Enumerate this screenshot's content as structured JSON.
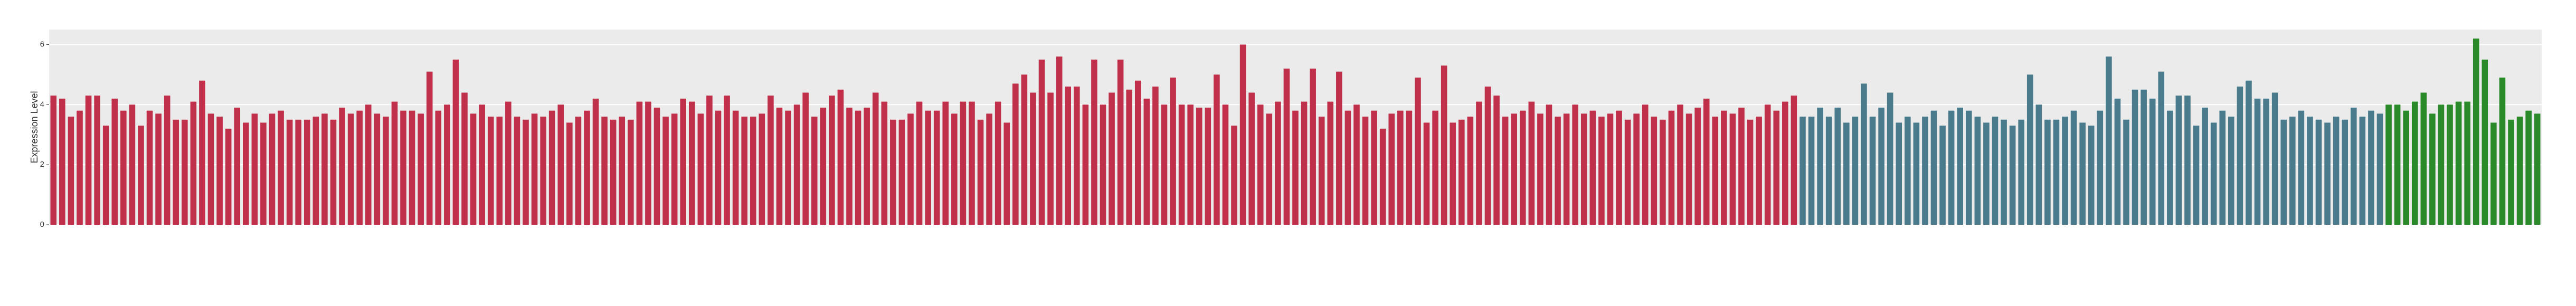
{
  "chart_data": {
    "type": "bar",
    "ylabel": "Expression Level",
    "ylim": [
      0,
      6.5
    ],
    "yticks": [
      0,
      2,
      4,
      6
    ],
    "grid": true,
    "series": [
      {
        "color": "#c0304a",
        "values": [
          4.3,
          4.2,
          3.6,
          3.8,
          4.3,
          4.3,
          3.3,
          4.2,
          3.8,
          4.0,
          3.3,
          3.8,
          3.7,
          4.3,
          3.5,
          3.5,
          4.1,
          4.8,
          3.7,
          3.6,
          3.2,
          3.9,
          3.4,
          3.7,
          3.4,
          3.7,
          3.8,
          3.5,
          3.5,
          3.5,
          3.6,
          3.7,
          3.5,
          3.9,
          3.7,
          3.8,
          4.0,
          3.7,
          3.6,
          4.1,
          3.8,
          3.8,
          3.7,
          5.1,
          3.8,
          4.0,
          5.5,
          4.4,
          3.7,
          4.0,
          3.6,
          3.6,
          4.1,
          3.6,
          3.5,
          3.7,
          3.6,
          3.8,
          4.0,
          3.4,
          3.6,
          3.8,
          4.2,
          3.6,
          3.5,
          3.6,
          3.5,
          4.1,
          4.1,
          3.9,
          3.6,
          3.7,
          4.2,
          4.1,
          3.7,
          4.3,
          3.8,
          4.3,
          3.8,
          3.6,
          3.6,
          3.7,
          4.3,
          3.9,
          3.8,
          4.0,
          4.4,
          3.6,
          3.9,
          4.3,
          4.5,
          3.9,
          3.8,
          3.9,
          4.4,
          4.1,
          3.5,
          3.5,
          3.7,
          4.1,
          3.8,
          3.8,
          4.1,
          3.7,
          4.1,
          4.1,
          3.5,
          3.7,
          4.1,
          3.4,
          4.7,
          5.0,
          4.4,
          5.5,
          4.4,
          5.6,
          4.6,
          4.6,
          4.0,
          5.5,
          4.0,
          4.4,
          5.5,
          4.5,
          4.8,
          4.2,
          4.6,
          4.0,
          4.9,
          4.0,
          4.0,
          3.9,
          3.9,
          5.0,
          4.0,
          3.3,
          6.0,
          4.4,
          4.0,
          3.7,
          4.1,
          5.2,
          3.8,
          4.1,
          5.2,
          3.6,
          4.1,
          5.1,
          3.8,
          4.0,
          3.6,
          3.8,
          3.2,
          3.7,
          3.8,
          3.8,
          4.9,
          3.4,
          3.8,
          5.3,
          3.4,
          3.5,
          3.6,
          4.1,
          4.6,
          4.3,
          3.6,
          3.7,
          3.8,
          4.1,
          3.7,
          4.0,
          3.6,
          3.7,
          4.0,
          3.7,
          3.8,
          3.6,
          3.7,
          3.8,
          3.5,
          3.7,
          4.0,
          3.6,
          3.5,
          3.8,
          4.0,
          3.7,
          3.9,
          4.2,
          3.6,
          3.8,
          3.7,
          3.9,
          3.5,
          3.6,
          4.0,
          3.8,
          4.1,
          4.3
        ]
      },
      {
        "color": "#4a7b8c",
        "values": [
          3.6,
          3.6,
          3.9,
          3.6,
          3.9,
          3.4,
          3.6,
          4.7,
          3.6,
          3.9,
          4.4,
          3.4,
          3.6,
          3.4,
          3.6,
          3.8,
          3.3,
          3.8,
          3.9,
          3.8,
          3.6,
          3.4,
          3.6,
          3.5,
          3.3,
          3.5,
          5.0,
          4.0,
          3.5,
          3.5,
          3.6,
          3.8,
          3.4,
          3.3,
          3.8,
          5.6,
          4.2,
          3.5,
          4.5,
          4.5,
          4.2,
          5.1,
          3.8,
          4.3,
          4.3,
          3.3,
          3.9,
          3.4,
          3.8,
          3.6,
          4.6,
          4.8,
          4.2,
          4.2,
          4.4,
          3.5,
          3.6,
          3.8,
          3.6,
          3.5,
          3.4,
          3.6,
          3.5,
          3.9,
          3.6,
          3.8,
          3.7
        ]
      },
      {
        "color": "#2a8a2a",
        "values": [
          4.0,
          4.0,
          3.8,
          4.1,
          4.4,
          3.7,
          4.0,
          4.0,
          4.1,
          4.1,
          6.2,
          5.5,
          3.4,
          4.9,
          3.5,
          3.6,
          3.8,
          3.7
        ]
      }
    ]
  }
}
